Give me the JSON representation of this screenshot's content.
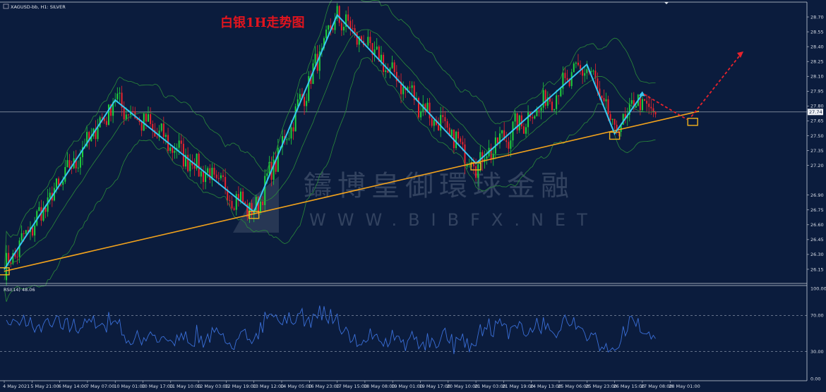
{
  "header": {
    "symbol_label": "XAGUSD-bb, H1: SILVER"
  },
  "annotation": {
    "title": "白银1H走势图"
  },
  "watermark": {
    "line1": "鑄博皇御環球金融",
    "line2": "WWW.BIBFX.NET"
  },
  "rsi": {
    "label": "RSI(14) 48.06",
    "levels": [
      30,
      70
    ],
    "ylim": [
      0,
      100
    ],
    "ticks": [
      "100.00",
      "70.00",
      "30.00",
      "0.00"
    ]
  },
  "current_price": "27.74",
  "colors": {
    "background": "#0b1c3d",
    "bull_candle": "#1fd23c",
    "bear_candle": "#e8232c",
    "bollinger": "#2a8a3a",
    "zigzag": "#34c7f0",
    "trendline": "#f2a21c",
    "projection": "#e8232c",
    "rsi_line": "#3a6fd8",
    "marker_box": "#f2b21c"
  },
  "chart_data": {
    "type": "candlestick",
    "symbol": "XAGUSD-bb",
    "timeframe": "H1",
    "ylim": [
      26.05,
      28.8
    ],
    "y_ticks": [
      "28.70",
      "28.55",
      "28.40",
      "28.25",
      "28.10",
      "27.95",
      "27.80",
      "27.65",
      "27.50",
      "27.35",
      "27.20",
      "26.90",
      "26.75",
      "26.60",
      "26.45",
      "26.30",
      "26.15"
    ],
    "x_ticks": [
      "4 May 2021",
      "5 May 21:00",
      "6 May 14:00",
      "7 May 07:00",
      "10 May 01:00",
      "10 May 17:00",
      "11 May 10:00",
      "12 May 03:00",
      "12 May 19:00",
      "13 May 12:00",
      "14 May 05:00",
      "16 May 23:00",
      "17 May 15:00",
      "18 May 08:00",
      "19 May 01:00",
      "19 May 17:00",
      "20 May 10:00",
      "21 May 03:00",
      "21 May 19:00",
      "24 May 13:00",
      "25 May 06:00",
      "25 May 23:00",
      "26 May 15:00",
      "27 May 08:00",
      "28 May 01:00"
    ],
    "zigzag_pivots": [
      {
        "time": "4 May 2021",
        "price": 26.15
      },
      {
        "time": "10 May 01:00",
        "price": 27.86
      },
      {
        "time": "13 May 12:00",
        "price": 26.73
      },
      {
        "time": "17 May 15:00",
        "price": 28.72
      },
      {
        "time": "21 May 03:00",
        "price": 27.22
      },
      {
        "time": "25 May 23:00",
        "price": 28.22
      },
      {
        "time": "26 May 15:00",
        "price": 27.52
      },
      {
        "time": "27 May 08:00",
        "price": 27.92
      }
    ],
    "projection": [
      {
        "time": "28 May 01:00",
        "price": 27.65
      },
      {
        "time": "after 28 May",
        "price": 28.33
      }
    ],
    "trendline": [
      {
        "time": "4 May 2021",
        "price": 26.13
      },
      {
        "time": "28 May 01:00",
        "price": 27.68
      }
    ],
    "support_markers": [
      {
        "time": "4 May 2021",
        "price": 26.13
      },
      {
        "time": "13 May 12:00",
        "price": 26.7
      },
      {
        "time": "21 May 03:00",
        "price": 27.19
      },
      {
        "time": "26 May 15:00",
        "price": 27.5
      },
      {
        "time": "28 May 01:00",
        "price": 27.64
      }
    ]
  }
}
